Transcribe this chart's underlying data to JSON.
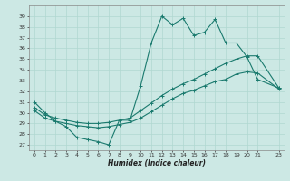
{
  "xlabel": "Humidex (Indice chaleur)",
  "bg_color": "#cce8e4",
  "line_color": "#1a7a6e",
  "grid_color": "#b0d8d0",
  "xlim": [
    -0.5,
    23.5
  ],
  "ylim": [
    26.5,
    40.0
  ],
  "yticks": [
    27,
    28,
    29,
    30,
    31,
    32,
    33,
    34,
    35,
    36,
    37,
    38,
    39
  ],
  "xticks": [
    0,
    1,
    2,
    3,
    4,
    5,
    6,
    7,
    8,
    9,
    10,
    11,
    12,
    13,
    14,
    15,
    16,
    17,
    18,
    19,
    20,
    21,
    23
  ],
  "line1_x": [
    0,
    1,
    2,
    3,
    4,
    5,
    6,
    7,
    8,
    9,
    10,
    11,
    12,
    13,
    14,
    15,
    16,
    17,
    18,
    19,
    20,
    21,
    23
  ],
  "line1_y": [
    31.0,
    30.0,
    29.2,
    28.7,
    27.7,
    27.5,
    27.3,
    27.0,
    29.3,
    29.3,
    32.5,
    36.5,
    39.0,
    38.2,
    38.8,
    37.2,
    37.5,
    38.7,
    36.5,
    36.5,
    35.2,
    33.1,
    32.3
  ],
  "line2_x": [
    0,
    1,
    2,
    3,
    4,
    5,
    6,
    7,
    8,
    9,
    10,
    11,
    12,
    13,
    14,
    15,
    16,
    17,
    18,
    19,
    20,
    21,
    23
  ],
  "line2_y": [
    30.5,
    29.8,
    29.5,
    29.3,
    29.1,
    29.0,
    29.0,
    29.1,
    29.3,
    29.5,
    30.2,
    30.9,
    31.6,
    32.2,
    32.7,
    33.1,
    33.6,
    34.1,
    34.6,
    35.0,
    35.3,
    35.3,
    32.3
  ],
  "line3_x": [
    0,
    1,
    2,
    3,
    4,
    5,
    6,
    7,
    8,
    9,
    10,
    11,
    12,
    13,
    14,
    15,
    16,
    17,
    18,
    19,
    20,
    21,
    23
  ],
  "line3_y": [
    30.2,
    29.5,
    29.2,
    29.0,
    28.8,
    28.7,
    28.6,
    28.7,
    28.9,
    29.1,
    29.5,
    30.1,
    30.7,
    31.3,
    31.8,
    32.1,
    32.5,
    32.9,
    33.1,
    33.6,
    33.8,
    33.7,
    32.2
  ],
  "marker": "+"
}
